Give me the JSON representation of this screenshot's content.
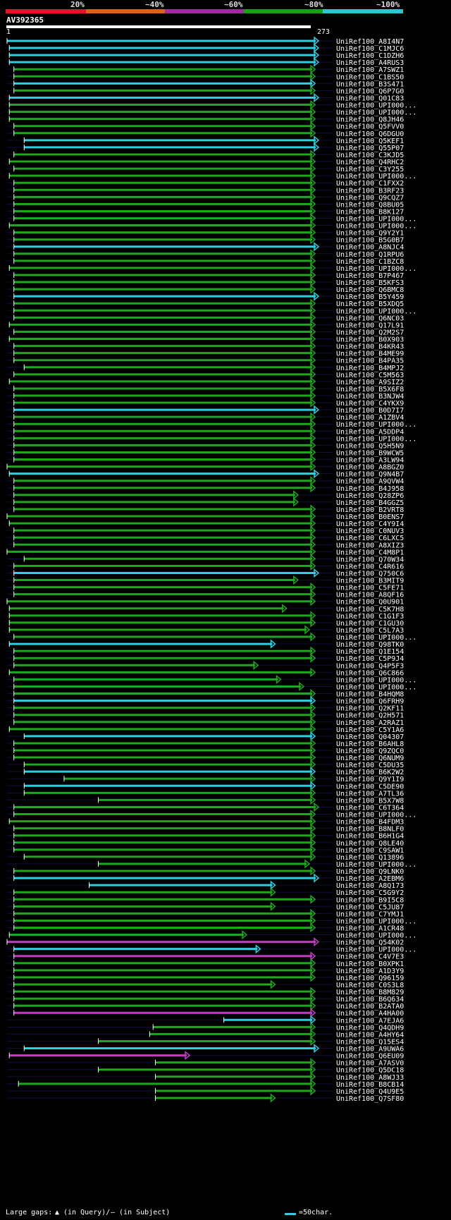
{
  "chart_data": {
    "type": "alignment",
    "query": {
      "name": "AV392365",
      "start_label": "1",
      "end_label": "273",
      "length": 273
    },
    "identity_legend": [
      {
        "label": "20%",
        "color": "#e8102a"
      },
      {
        "label": "~40%",
        "color": "#e06018"
      },
      {
        "label": "~60%",
        "color": "#a02aa0"
      },
      {
        "label": "~80%",
        "color": "#16a016"
      },
      {
        "label": "~100%",
        "color": "#28c8d0"
      }
    ],
    "colors": {
      "cyan": "#2bd1e0",
      "green": "#1fa81f",
      "magenta": "#c23cc2"
    },
    "footer": {
      "gap_label": "Large gaps:",
      "query_gap": "(in Query)/",
      "subject_gap": "– (in Subject)",
      "scale": "=50char."
    },
    "hits": [
      {
        "name": "UniRef100_A8I4N7",
        "s": 0,
        "e": 273,
        "color": "cyan"
      },
      {
        "name": "UniRef100_C1MJC6",
        "s": 2,
        "e": 273,
        "color": "cyan"
      },
      {
        "name": "UniRef100_C1DZH6",
        "s": 2,
        "e": 273,
        "color": "cyan"
      },
      {
        "name": "UniRef100_A4RUS3",
        "s": 2,
        "e": 273,
        "color": "cyan"
      },
      {
        "name": "UniRef100_A7SWZ1",
        "s": 6,
        "e": 270,
        "color": "green"
      },
      {
        "name": "UniRef100_C1BS50",
        "s": 6,
        "e": 270,
        "color": "green"
      },
      {
        "name": "UniRef100_B3S471",
        "s": 6,
        "e": 270,
        "color": "cyan"
      },
      {
        "name": "UniRef100_Q6P7G0",
        "s": 6,
        "e": 270,
        "color": "green"
      },
      {
        "name": "UniRef100_Q01C83",
        "s": 2,
        "e": 273,
        "color": "cyan"
      },
      {
        "name": "UniRef100_UPI000...",
        "s": 2,
        "e": 270,
        "color": "green"
      },
      {
        "name": "UniRef100_UPI000...",
        "s": 2,
        "e": 270,
        "color": "green"
      },
      {
        "name": "UniRef100_Q8JH46",
        "s": 2,
        "e": 270,
        "color": "green"
      },
      {
        "name": "UniRef100_Q5FVV0",
        "s": 6,
        "e": 270,
        "color": "green"
      },
      {
        "name": "UniRef100_Q6DGU0",
        "s": 6,
        "e": 270,
        "color": "green"
      },
      {
        "name": "UniRef100_Q5KEF1",
        "s": 15,
        "e": 273,
        "color": "cyan"
      },
      {
        "name": "UniRef100_Q55P07",
        "s": 15,
        "e": 273,
        "color": "cyan"
      },
      {
        "name": "UniRef100_C3KJD5",
        "s": 6,
        "e": 270,
        "color": "green"
      },
      {
        "name": "UniRef100_Q4RHC2",
        "s": 2,
        "e": 270,
        "color": "green"
      },
      {
        "name": "UniRef100_C3Y255",
        "s": 6,
        "e": 270,
        "color": "green"
      },
      {
        "name": "UniRef100_UPI000...",
        "s": 2,
        "e": 270,
        "color": "green"
      },
      {
        "name": "UniRef100_C1FXX2",
        "s": 6,
        "e": 270,
        "color": "green"
      },
      {
        "name": "UniRef100_B3RF23",
        "s": 6,
        "e": 270,
        "color": "green"
      },
      {
        "name": "UniRef100_Q9CQZ7",
        "s": 6,
        "e": 270,
        "color": "green"
      },
      {
        "name": "UniRef100_Q8BU05",
        "s": 6,
        "e": 270,
        "color": "green"
      },
      {
        "name": "UniRef100_B8K127",
        "s": 6,
        "e": 270,
        "color": "green"
      },
      {
        "name": "UniRef100_UPI000...",
        "s": 6,
        "e": 270,
        "color": "green"
      },
      {
        "name": "UniRef100_UPI000...",
        "s": 2,
        "e": 270,
        "color": "green"
      },
      {
        "name": "UniRef100_Q9Y2Y1",
        "s": 6,
        "e": 270,
        "color": "green"
      },
      {
        "name": "UniRef100_B5G0B7",
        "s": 6,
        "e": 270,
        "color": "green"
      },
      {
        "name": "UniRef100_A8NJC4",
        "s": 6,
        "e": 273,
        "color": "cyan"
      },
      {
        "name": "UniRef100_Q1RPU6",
        "s": 6,
        "e": 270,
        "color": "green"
      },
      {
        "name": "UniRef100_C1BZC8",
        "s": 6,
        "e": 270,
        "color": "green"
      },
      {
        "name": "UniRef100_UPI000...",
        "s": 2,
        "e": 270,
        "color": "green"
      },
      {
        "name": "UniRef100_B7P467",
        "s": 6,
        "e": 270,
        "color": "green"
      },
      {
        "name": "UniRef100_B5KFS3",
        "s": 6,
        "e": 270,
        "color": "green"
      },
      {
        "name": "UniRef100_Q6BMC8",
        "s": 6,
        "e": 270,
        "color": "green"
      },
      {
        "name": "UniRef100_B5Y459",
        "s": 6,
        "e": 273,
        "color": "cyan"
      },
      {
        "name": "UniRef100_B5XDQ5",
        "s": 6,
        "e": 270,
        "color": "green"
      },
      {
        "name": "UniRef100_UPI000...",
        "s": 6,
        "e": 270,
        "color": "green"
      },
      {
        "name": "UniRef100_Q6NC03",
        "s": 6,
        "e": 270,
        "color": "green"
      },
      {
        "name": "UniRef100_Q17L91",
        "s": 2,
        "e": 270,
        "color": "green"
      },
      {
        "name": "UniRef100_Q2M2S7",
        "s": 6,
        "e": 270,
        "color": "green"
      },
      {
        "name": "UniRef100_B0X903",
        "s": 2,
        "e": 270,
        "color": "green"
      },
      {
        "name": "UniRef100_B4KR43",
        "s": 6,
        "e": 270,
        "color": "green"
      },
      {
        "name": "UniRef100_B4ME99",
        "s": 6,
        "e": 270,
        "color": "green"
      },
      {
        "name": "UniRef100_B4PA35",
        "s": 6,
        "e": 270,
        "color": "green"
      },
      {
        "name": "UniRef100_B4MPJ2",
        "s": 15,
        "e": 270,
        "color": "green"
      },
      {
        "name": "UniRef100_C5M563",
        "s": 6,
        "e": 270,
        "color": "green"
      },
      {
        "name": "UniRef100_A9SIZ2",
        "s": 2,
        "e": 270,
        "color": "green"
      },
      {
        "name": "UniRef100_B5X6F8",
        "s": 6,
        "e": 270,
        "color": "green"
      },
      {
        "name": "UniRef100_B3NJW4",
        "s": 6,
        "e": 270,
        "color": "green"
      },
      {
        "name": "UniRef100_C4YKX9",
        "s": 6,
        "e": 270,
        "color": "green"
      },
      {
        "name": "UniRef100_B0D7I7",
        "s": 6,
        "e": 273,
        "color": "cyan"
      },
      {
        "name": "UniRef100_A1ZBV4",
        "s": 6,
        "e": 270,
        "color": "green"
      },
      {
        "name": "UniRef100_UPI000...",
        "s": 6,
        "e": 270,
        "color": "green"
      },
      {
        "name": "UniRef100_A5DDP4",
        "s": 6,
        "e": 270,
        "color": "green"
      },
      {
        "name": "UniRef100_UPI000...",
        "s": 6,
        "e": 270,
        "color": "green"
      },
      {
        "name": "UniRef100_Q5H5N9",
        "s": 6,
        "e": 270,
        "color": "green"
      },
      {
        "name": "UniRef100_B9WCW5",
        "s": 6,
        "e": 270,
        "color": "green"
      },
      {
        "name": "UniRef100_A3LW94",
        "s": 6,
        "e": 270,
        "color": "green"
      },
      {
        "name": "UniRef100_A8BGZ0",
        "s": 0,
        "e": 270,
        "color": "green"
      },
      {
        "name": "UniRef100_Q9N4B7",
        "s": 2,
        "e": 273,
        "color": "cyan"
      },
      {
        "name": "UniRef100_A9QVW4",
        "s": 6,
        "e": 270,
        "color": "green"
      },
      {
        "name": "UniRef100_B4J958",
        "s": 6,
        "e": 270,
        "color": "green"
      },
      {
        "name": "UniRef100_Q28ZP6",
        "s": 6,
        "e": 255,
        "color": "green"
      },
      {
        "name": "UniRef100_B4GGZ5",
        "s": 6,
        "e": 255,
        "color": "green"
      },
      {
        "name": "UniRef100_B2VRT8",
        "s": 6,
        "e": 270,
        "color": "green"
      },
      {
        "name": "UniRef100_B0ENS7",
        "s": 0,
        "e": 270,
        "color": "green"
      },
      {
        "name": "UniRef100_C4Y9I4",
        "s": 2,
        "e": 270,
        "color": "green"
      },
      {
        "name": "UniRef100_C0NUV3",
        "s": 6,
        "e": 270,
        "color": "green"
      },
      {
        "name": "UniRef100_C6LXC5",
        "s": 6,
        "e": 270,
        "color": "green"
      },
      {
        "name": "UniRef100_A8XIZ3",
        "s": 6,
        "e": 270,
        "color": "green"
      },
      {
        "name": "UniRef100_C4M8P1",
        "s": 0,
        "e": 270,
        "color": "green"
      },
      {
        "name": "UniRef100_Q70W34",
        "s": 15,
        "e": 270,
        "color": "green"
      },
      {
        "name": "UniRef100_C4R616",
        "s": 6,
        "e": 270,
        "color": "green"
      },
      {
        "name": "UniRef100_Q750C6",
        "s": 6,
        "e": 273,
        "color": "cyan"
      },
      {
        "name": "UniRef100_B3MIT9",
        "s": 6,
        "e": 255,
        "color": "green"
      },
      {
        "name": "UniRef100_C5FE71",
        "s": 6,
        "e": 270,
        "color": "green"
      },
      {
        "name": "UniRef100_A8QF16",
        "s": 6,
        "e": 270,
        "color": "green"
      },
      {
        "name": "UniRef100_Q0U901",
        "s": 0,
        "e": 270,
        "color": "green"
      },
      {
        "name": "UniRef100_C5K7H8",
        "s": 2,
        "e": 245,
        "color": "green"
      },
      {
        "name": "UniRef100_C1G1F3",
        "s": 2,
        "e": 270,
        "color": "green"
      },
      {
        "name": "UniRef100_C1GU30",
        "s": 2,
        "e": 270,
        "color": "green"
      },
      {
        "name": "UniRef100_C5L7A3",
        "s": 2,
        "e": 265,
        "color": "green"
      },
      {
        "name": "UniRef100_UPI000...",
        "s": 6,
        "e": 270,
        "color": "green"
      },
      {
        "name": "UniRef100_Q98TK0",
        "s": 2,
        "e": 235,
        "color": "cyan"
      },
      {
        "name": "UniRef100_Q1E154",
        "s": 6,
        "e": 270,
        "color": "green"
      },
      {
        "name": "UniRef100_C5P9J4",
        "s": 6,
        "e": 270,
        "color": "green"
      },
      {
        "name": "UniRef100_Q4P5F3",
        "s": 6,
        "e": 220,
        "color": "green"
      },
      {
        "name": "UniRef100_Q6C866",
        "s": 2,
        "e": 270,
        "color": "green"
      },
      {
        "name": "UniRef100_UPI000...",
        "s": 6,
        "e": 240,
        "color": "green"
      },
      {
        "name": "UniRef100_UPI000...",
        "s": 6,
        "e": 260,
        "color": "green"
      },
      {
        "name": "UniRef100_B4HQM8",
        "s": 6,
        "e": 270,
        "color": "green"
      },
      {
        "name": "UniRef100_Q6FRH9",
        "s": 6,
        "e": 270,
        "color": "cyan"
      },
      {
        "name": "UniRef100_Q2KF11",
        "s": 6,
        "e": 270,
        "color": "green"
      },
      {
        "name": "UniRef100_Q2H571",
        "s": 6,
        "e": 270,
        "color": "green"
      },
      {
        "name": "UniRef100_A2RAZ1",
        "s": 6,
        "e": 270,
        "color": "green"
      },
      {
        "name": "UniRef100_C5Y1A6",
        "s": 2,
        "e": 270,
        "color": "green"
      },
      {
        "name": "UniRef100_Q04307",
        "s": 15,
        "e": 270,
        "color": "cyan"
      },
      {
        "name": "UniRef100_B6AHL8",
        "s": 6,
        "e": 270,
        "color": "green"
      },
      {
        "name": "UniRef100_Q9ZQC0",
        "s": 6,
        "e": 270,
        "color": "green"
      },
      {
        "name": "UniRef100_Q6NUM9",
        "s": 6,
        "e": 270,
        "color": "green"
      },
      {
        "name": "UniRef100_C5DU35",
        "s": 15,
        "e": 270,
        "color": "green"
      },
      {
        "name": "UniRef100_B6K2W2",
        "s": 15,
        "e": 270,
        "color": "cyan"
      },
      {
        "name": "UniRef100_Q9Y1I9",
        "s": 50,
        "e": 270,
        "color": "green"
      },
      {
        "name": "UniRef100_C5DE90",
        "s": 15,
        "e": 270,
        "color": "cyan"
      },
      {
        "name": "UniRef100_A7TL36",
        "s": 15,
        "e": 270,
        "color": "green"
      },
      {
        "name": "UniRef100_B5X7W8",
        "s": 80,
        "e": 270,
        "color": "green"
      },
      {
        "name": "UniRef100_C6T364",
        "s": 6,
        "e": 273,
        "color": "green"
      },
      {
        "name": "UniRef100_UPI000...",
        "s": 6,
        "e": 270,
        "color": "green"
      },
      {
        "name": "UniRef100_B4FDM3",
        "s": 2,
        "e": 270,
        "color": "green"
      },
      {
        "name": "UniRef100_B8NLF0",
        "s": 6,
        "e": 270,
        "color": "green"
      },
      {
        "name": "UniRef100_B6H1G4",
        "s": 6,
        "e": 270,
        "color": "green"
      },
      {
        "name": "UniRef100_Q8LE40",
        "s": 6,
        "e": 270,
        "color": "green"
      },
      {
        "name": "UniRef100_C9SAW1",
        "s": 6,
        "e": 270,
        "color": "green"
      },
      {
        "name": "UniRef100_Q13896",
        "s": 15,
        "e": 270,
        "color": "green"
      },
      {
        "name": "UniRef100_UPI000...",
        "s": 80,
        "e": 265,
        "color": "green"
      },
      {
        "name": "UniRef100_Q9LNK0",
        "s": 6,
        "e": 270,
        "color": "green"
      },
      {
        "name": "UniRef100_A2EBM6",
        "s": 6,
        "e": 273,
        "color": "cyan"
      },
      {
        "name": "UniRef100_A8Q173",
        "s": 72,
        "e": 235,
        "color": "cyan"
      },
      {
        "name": "UniRef100_C5G9Y2",
        "s": 6,
        "e": 235,
        "color": "green"
      },
      {
        "name": "UniRef100_B9I5C8",
        "s": 6,
        "e": 270,
        "color": "green"
      },
      {
        "name": "UniRef100_C5JU87",
        "s": 6,
        "e": 235,
        "color": "green"
      },
      {
        "name": "UniRef100_C7YMJ1",
        "s": 6,
        "e": 270,
        "color": "green"
      },
      {
        "name": "UniRef100_UPI000...",
        "s": 6,
        "e": 270,
        "color": "green"
      },
      {
        "name": "UniRef100_A1CR48",
        "s": 6,
        "e": 270,
        "color": "green"
      },
      {
        "name": "UniRef100_UPI000...",
        "s": 2,
        "e": 210,
        "color": "green"
      },
      {
        "name": "UniRef100_Q54K02",
        "s": 0,
        "e": 273,
        "color": "magenta"
      },
      {
        "name": "UniRef100_UPI000...",
        "s": 6,
        "e": 222,
        "color": "cyan"
      },
      {
        "name": "UniRef100_C4V7E3",
        "s": 6,
        "e": 270,
        "color": "magenta"
      },
      {
        "name": "UniRef100_B0XPK1",
        "s": 6,
        "e": 270,
        "color": "green"
      },
      {
        "name": "UniRef100_A1D3Y9",
        "s": 6,
        "e": 270,
        "color": "green"
      },
      {
        "name": "UniRef100_Q96159",
        "s": 6,
        "e": 270,
        "color": "green"
      },
      {
        "name": "UniRef100_C0S3L8",
        "s": 6,
        "e": 235,
        "color": "green"
      },
      {
        "name": "UniRef100_B8M829",
        "s": 6,
        "e": 270,
        "color": "green"
      },
      {
        "name": "UniRef100_B6Q634",
        "s": 6,
        "e": 270,
        "color": "green"
      },
      {
        "name": "UniRef100_B2ATA0",
        "s": 6,
        "e": 270,
        "color": "green"
      },
      {
        "name": "UniRef100_A4HA00",
        "s": 6,
        "e": 270,
        "color": "magenta"
      },
      {
        "name": "UniRef100_A7EJA6",
        "s": 190,
        "e": 270,
        "color": "cyan"
      },
      {
        "name": "UniRef100_Q4QDH9",
        "s": 128,
        "e": 270,
        "color": "green"
      },
      {
        "name": "UniRef100_A4HY64",
        "s": 125,
        "e": 270,
        "color": "green"
      },
      {
        "name": "UniRef100_Q15ES4",
        "s": 80,
        "e": 270,
        "color": "green"
      },
      {
        "name": "UniRef100_A9UWA6",
        "s": 15,
        "e": 273,
        "color": "cyan"
      },
      {
        "name": "UniRef100_Q6EU09",
        "s": 2,
        "e": 160,
        "color": "magenta"
      },
      {
        "name": "UniRef100_A7ASV0",
        "s": 130,
        "e": 270,
        "color": "green"
      },
      {
        "name": "UniRef100_Q5DC18",
        "s": 80,
        "e": 270,
        "color": "green"
      },
      {
        "name": "UniRef100_A8WJ33",
        "s": 130,
        "e": 270,
        "color": "green"
      },
      {
        "name": "UniRef100_B8CB14",
        "s": 10,
        "e": 270,
        "color": "green"
      },
      {
        "name": "UniRef100_Q4U9E5",
        "s": 130,
        "e": 270,
        "color": "green"
      },
      {
        "name": "UniRef100_Q7SF80",
        "s": 130,
        "e": 235,
        "color": "green"
      }
    ]
  }
}
